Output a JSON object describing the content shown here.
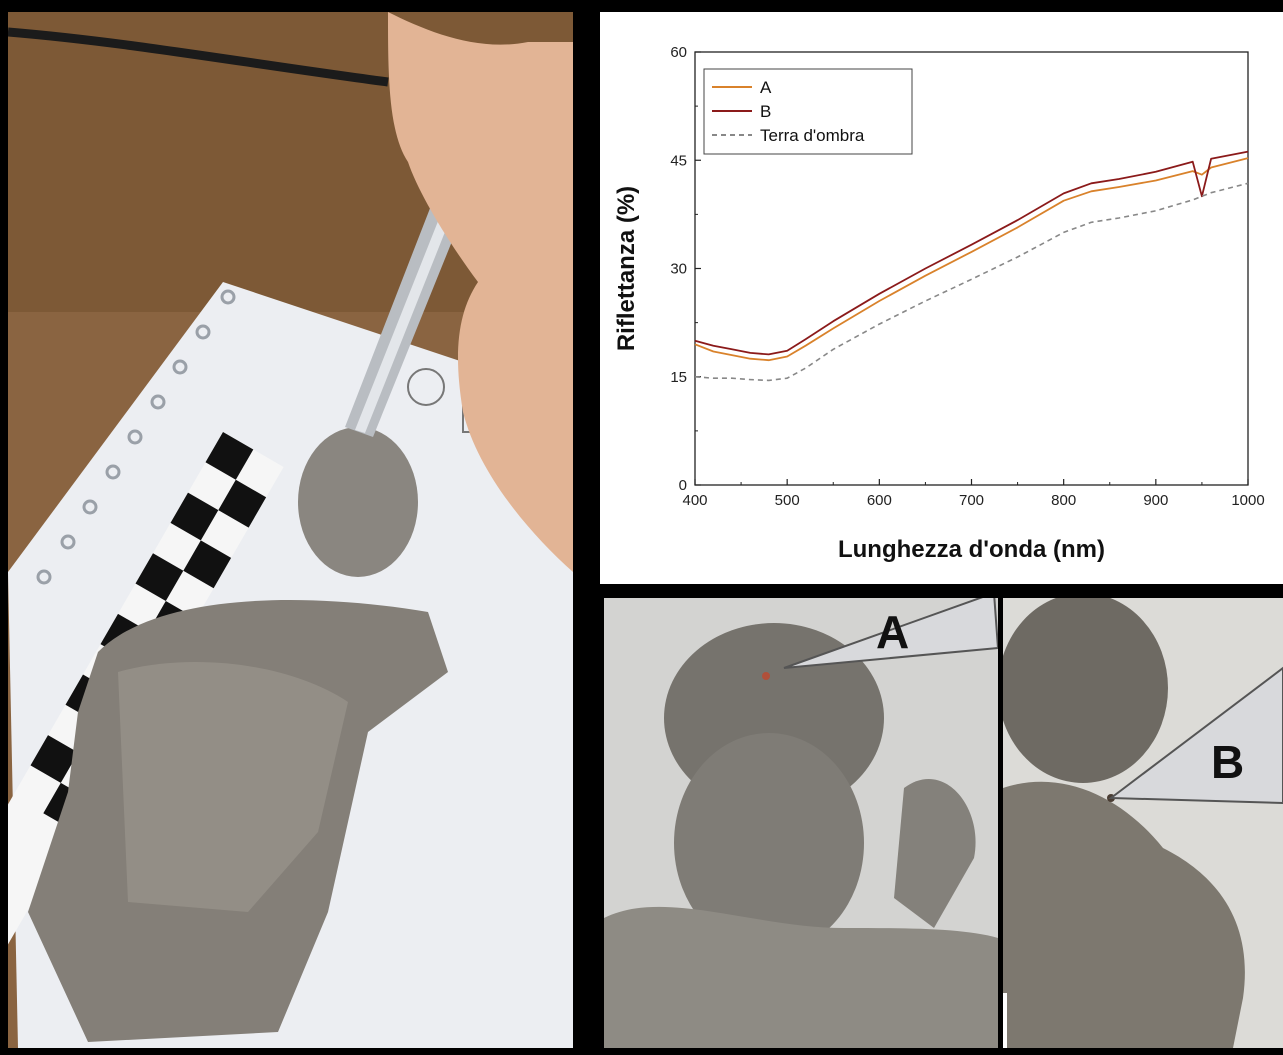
{
  "photos": {
    "main_alt": "photo-main",
    "label_a": "A",
    "label_b": "B"
  },
  "chart_data": {
    "type": "line",
    "xlabel": "Lunghezza d'onda (nm)",
    "ylabel": "Riflettanza (%)",
    "xlim": [
      400,
      1000
    ],
    "ylim": [
      0,
      60
    ],
    "xticks": [
      400,
      500,
      600,
      700,
      800,
      900,
      1000
    ],
    "yticks": [
      0,
      15,
      30,
      45,
      60
    ],
    "grid": false,
    "legend_position": "top-left",
    "series": [
      {
        "name": "A",
        "color": "#d9822b",
        "style": "solid",
        "x": [
          400,
          420,
          440,
          460,
          480,
          500,
          520,
          550,
          600,
          650,
          700,
          750,
          800,
          830,
          860,
          900,
          940,
          950,
          960,
          1000
        ],
        "y": [
          19.5,
          18.5,
          18.0,
          17.5,
          17.3,
          17.8,
          19.3,
          21.7,
          25.5,
          29.0,
          32.3,
          35.7,
          39.4,
          40.7,
          41.3,
          42.2,
          43.5,
          43.0,
          44.0,
          45.3
        ]
      },
      {
        "name": "B",
        "color": "#8b1a1a",
        "style": "solid",
        "x": [
          400,
          420,
          440,
          460,
          480,
          500,
          520,
          550,
          600,
          650,
          700,
          750,
          800,
          830,
          860,
          900,
          940,
          950,
          960,
          1000
        ],
        "y": [
          20.0,
          19.3,
          18.8,
          18.3,
          18.1,
          18.6,
          20.2,
          22.7,
          26.5,
          30.0,
          33.3,
          36.7,
          40.4,
          41.8,
          42.4,
          43.4,
          44.8,
          40.0,
          45.2,
          46.2
        ]
      },
      {
        "name": "Terra d'ombra",
        "color": "#888888",
        "style": "dashed",
        "x": [
          400,
          420,
          440,
          460,
          480,
          500,
          520,
          550,
          600,
          650,
          700,
          750,
          800,
          830,
          860,
          900,
          940,
          960,
          1000
        ],
        "y": [
          15.0,
          14.8,
          14.8,
          14.6,
          14.5,
          14.8,
          16.2,
          18.8,
          22.3,
          25.5,
          28.5,
          31.6,
          35.0,
          36.4,
          37.0,
          38.0,
          39.5,
          40.5,
          41.8
        ]
      }
    ]
  }
}
